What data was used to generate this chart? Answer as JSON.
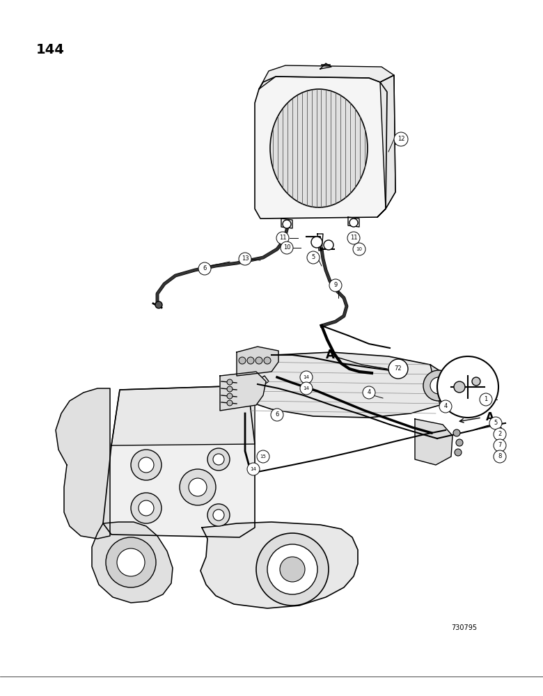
{
  "page_number": "144",
  "part_number_bottom": "730795",
  "background_color": "#ffffff",
  "text_color": "#000000",
  "line_color": "#000000",
  "fig_width": 7.8,
  "fig_height": 10.0,
  "dpi": 100
}
